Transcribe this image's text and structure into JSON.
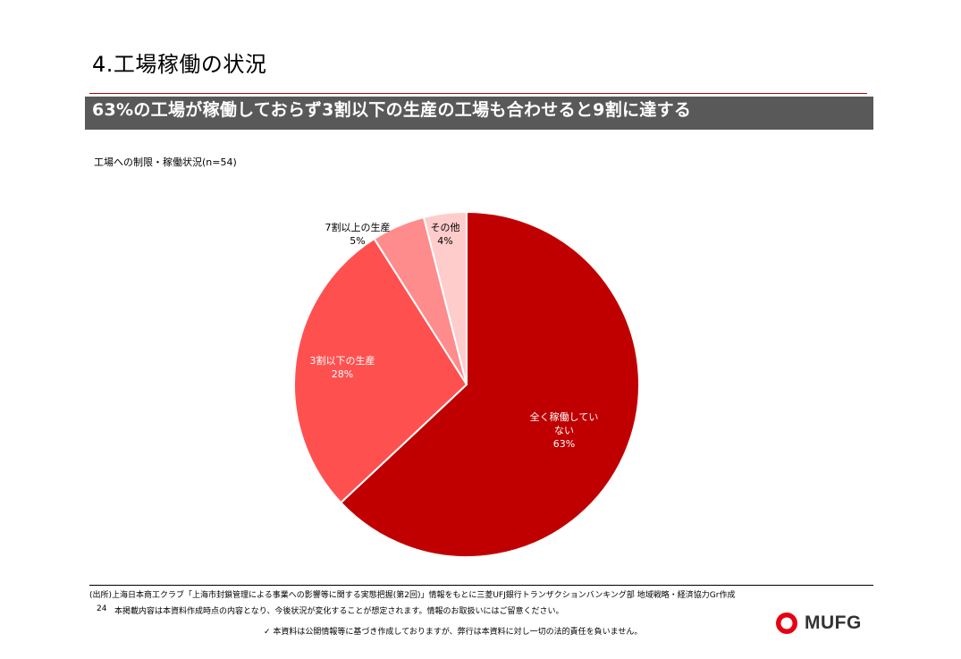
{
  "page": {
    "title": "4.工場稼働の状況",
    "headline": "63%の工場が稼働しておらず3割以下の生産の工場も合わせると9割に達する"
  },
  "chart_data": {
    "type": "pie",
    "title": "工場への制限・稼働状況(n=54)",
    "start": "12 o'clock",
    "direction": "clockwise",
    "slices": [
      {
        "label_lines": [
          "全く稼働してい",
          "ない"
        ],
        "value": 63,
        "value_text": "63%",
        "color": "#c00000"
      },
      {
        "label_lines": [
          "3割以下の生産"
        ],
        "value": 28,
        "value_text": "28%",
        "color": "#ff5050"
      },
      {
        "label_lines": [
          "7割以上の生産"
        ],
        "value": 5,
        "value_text": "5%",
        "color": "#ff8c8c"
      },
      {
        "label_lines": [
          "その他"
        ],
        "value": 4,
        "value_text": "4%",
        "color": "#ffcccc"
      }
    ]
  },
  "footer": {
    "source": "(出所)上海日本商工クラブ「上海市封鎖管理による事業への影響等に関する実態把握(第2回)」情報をもとに三菱UFJ銀行トランザクションバンキング部 地域戦略・経済協力Gr作成",
    "page_number": "24",
    "note": "本掲載内容は本資料作成時点の内容となり、今後状況が変化することが想定されます。情報のお取扱いにはご留意ください。",
    "disclaimer": "✓ 本資料は公開情報等に基づき作成しておりますが、弊行は本資料に対し一切の法的責任を負いません。",
    "logo_text": "MUFG"
  },
  "colors": {
    "accent": "#c00000",
    "headline_bar": "#595959"
  }
}
